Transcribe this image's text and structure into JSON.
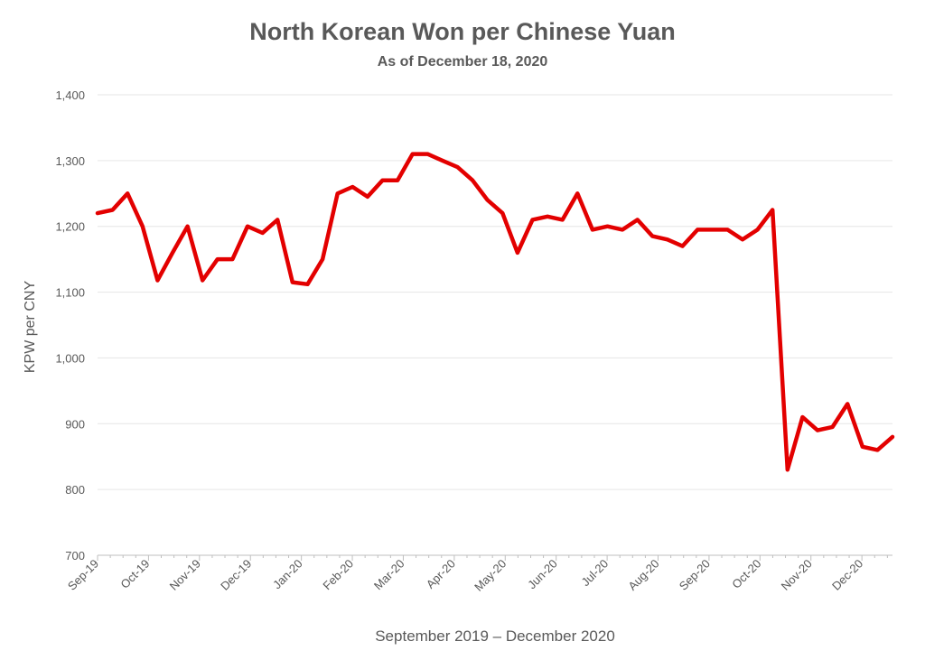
{
  "chart_data": {
    "type": "line",
    "title": "North Korean Won per Chinese Yuan",
    "subtitle": "As of December 18, 2020",
    "xlabel": "September 2019 – December 2020",
    "ylabel": "KPW per CNY",
    "ylim": [
      700,
      1400
    ],
    "yticks": [
      "700",
      "800",
      "900",
      "1,000",
      "1,100",
      "1,200",
      "1,300",
      "1,400"
    ],
    "ytick_values": [
      700,
      800,
      900,
      1000,
      1100,
      1200,
      1300,
      1400
    ],
    "xticks": [
      "Sep-19",
      "Oct-19",
      "Nov-19",
      "Dec-19",
      "Jan-20",
      "Feb-20",
      "Mar-20",
      "Apr-20",
      "May-20",
      "Jun-20",
      "Jul-20",
      "Aug-20",
      "Sep-20",
      "Oct-20",
      "Nov-20",
      "Dec-20"
    ],
    "grid": true,
    "line_color": "#e30000",
    "series": [
      {
        "values": [
          1220,
          1225,
          1250,
          1200,
          1118,
          1160,
          1200,
          1118,
          1150,
          1150,
          1200,
          1190,
          1210,
          1115,
          1112,
          1150,
          1250,
          1260,
          1245,
          1270,
          1270,
          1310,
          1310,
          1300,
          1290,
          1270,
          1240,
          1220,
          1160,
          1210,
          1215,
          1210,
          1250,
          1195,
          1200,
          1195,
          1210,
          1185,
          1180,
          1170,
          1195,
          1195,
          1195,
          1180,
          1195,
          1225,
          830,
          910,
          890,
          895,
          930,
          865,
          860,
          880
        ]
      }
    ]
  }
}
